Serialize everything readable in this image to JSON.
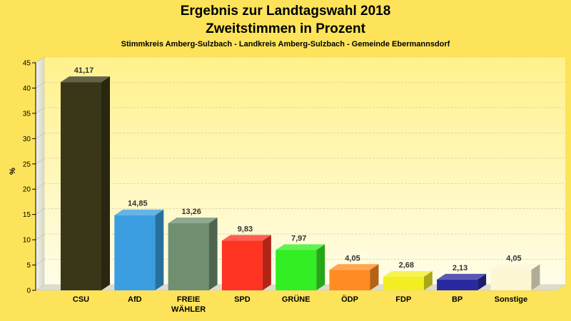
{
  "chart_data": {
    "type": "bar",
    "title": "Ergebnis zur Landtagswahl 2018",
    "subtitle": "Zweitstimmen in Prozent",
    "caption": "Stimmkreis Amberg-Sulzbach - Landkreis Amberg-Sulzbach - Gemeinde Ebermannsdorf",
    "ylabel": "%",
    "xlabel": "",
    "ylim": [
      0,
      45
    ],
    "yticks": [
      0,
      5,
      10,
      15,
      20,
      25,
      30,
      35,
      40,
      45
    ],
    "grid": true,
    "legend": "none",
    "categories": [
      "CSU",
      "AfD",
      "FREIE WÄHLER",
      "SPD",
      "GRÜNE",
      "ÖDP",
      "FDP",
      "BP",
      "Sonstige"
    ],
    "category_lines": [
      [
        "CSU"
      ],
      [
        "AfD"
      ],
      [
        "FREIE",
        "WÄHLER"
      ],
      [
        "SPD"
      ],
      [
        "GRÜNE"
      ],
      [
        "ÖDP"
      ],
      [
        "FDP"
      ],
      [
        "BP"
      ],
      [
        "Sonstige"
      ]
    ],
    "values": [
      41.17,
      14.85,
      13.26,
      9.83,
      7.97,
      4.05,
      2.68,
      2.13,
      4.05
    ],
    "value_labels": [
      "41,17",
      "14,85",
      "13,26",
      "9,83",
      "7,97",
      "4,05",
      "2,68",
      "2,13",
      "4,05"
    ],
    "colors": [
      "#3a3618",
      "#3a9ee0",
      "#6f8f70",
      "#ff3322",
      "#33ee22",
      "#ff8c22",
      "#f2ee22",
      "#2a2aa0",
      "#fdf6d2"
    ]
  }
}
